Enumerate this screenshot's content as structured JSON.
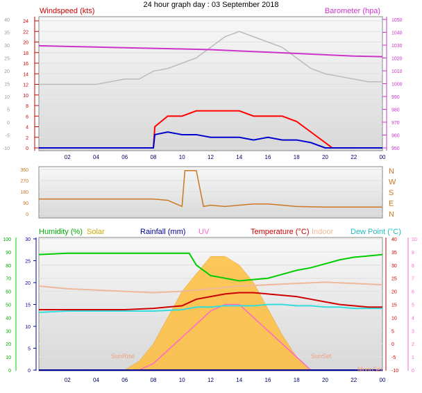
{
  "page_title": "24 hour graph day : 03 September 2018",
  "panel1": {
    "wind_label": "Windspeed (kts)",
    "baro_label": "Barometer (hpa)",
    "colors": {
      "gust": "#ff0000",
      "avg": "#0000cc",
      "baro": "#cc33cc",
      "temp_ghost": "#bbbbbb"
    }
  },
  "panel2": {
    "dir_labels": [
      "N",
      "W",
      "S",
      "E",
      "N"
    ],
    "color": "#cc7722"
  },
  "panel3": {
    "legend": {
      "humidity": "Humidity (%)",
      "solar": "Solar",
      "rainfall": "Rainfall (mm)",
      "uv": "UV",
      "temperature": "Temperature (°C)",
      "indoor": "Indoor",
      "dewpoint": "Dew Point (°C)"
    },
    "markers": {
      "sunrise": "SunRise",
      "sunset": "SunSet",
      "moon_set": "MoonSet"
    },
    "colors": {
      "humidity": "#00cc00",
      "solar": "#ffbb33",
      "rainfall": "#000099",
      "uv": "#ff66cc",
      "temperature": "#cc0000",
      "indoor": "#f0b89a",
      "dewpoint": "#33dddd"
    }
  },
  "chart_data": [
    {
      "type": "line",
      "x_ticks": [
        "02",
        "04",
        "06",
        "08",
        "10",
        "12",
        "14",
        "16",
        "18",
        "20",
        "22",
        "00"
      ],
      "axes": {
        "left_kts": [
          24,
          22,
          20,
          18,
          16,
          14,
          12,
          10,
          8,
          6,
          4,
          2,
          0
        ],
        "left_outer": [
          "40",
          "35",
          "30",
          "25",
          "20",
          "15",
          "10",
          "5",
          "0",
          "-5",
          "-10"
        ],
        "right_hpa": [
          1050,
          1040,
          1030,
          1020,
          1010,
          1000,
          990,
          980,
          970,
          960,
          950
        ]
      },
      "series": [
        {
          "name": "Windspeed (kts)",
          "x": [
            0,
            8,
            8.1,
            9,
            10,
            11,
            12,
            13,
            14,
            15,
            16,
            17,
            18,
            19,
            20,
            20.5,
            21,
            24
          ],
          "y": [
            0,
            0,
            4,
            6,
            6,
            7,
            7,
            7,
            7,
            6,
            6,
            6,
            5,
            3,
            1,
            0,
            0,
            0
          ]
        },
        {
          "name": "Windspeed (kts)",
          "x": [
            0,
            8,
            8.1,
            9,
            10,
            11,
            12,
            13,
            14,
            15,
            16,
            17,
            18,
            19,
            20,
            24
          ],
          "y": [
            0,
            0,
            2.5,
            3,
            2.5,
            2.5,
            2,
            2,
            2,
            1.5,
            2,
            1.5,
            1.5,
            1,
            0,
            0
          ]
        },
        {
          "name": "Barometer (hpa)",
          "x": [
            0,
            2,
            4,
            6,
            8,
            10,
            12,
            14,
            16,
            18,
            20,
            22,
            24
          ],
          "y": [
            1029.5,
            1029,
            1028.5,
            1028,
            1027.5,
            1027,
            1026.5,
            1025.5,
            1024.5,
            1023.5,
            1022.5,
            1021.5,
            1021
          ]
        }
      ]
    },
    {
      "type": "line",
      "x_ticks": [
        "02",
        "04",
        "06",
        "08",
        "10",
        "12",
        "14",
        "16",
        "18",
        "20",
        "22",
        "00"
      ],
      "y_ticks": [
        360,
        270,
        180,
        90,
        0
      ],
      "series": [
        {
          "x": [
            0,
            2,
            4,
            6,
            8,
            9,
            10,
            10.2,
            10.3,
            11,
            11.5,
            12,
            13,
            14,
            15,
            16,
            17,
            18,
            20,
            22,
            24
          ],
          "y": [
            120,
            120,
            120,
            120,
            120,
            110,
            60,
            350,
            350,
            350,
            60,
            70,
            60,
            70,
            80,
            80,
            70,
            60,
            55,
            55,
            55
          ]
        }
      ]
    },
    {
      "type": "area",
      "x_ticks": [
        "02",
        "04",
        "06",
        "08",
        "10",
        "12",
        "14",
        "16",
        "18",
        "20",
        "22",
        "00"
      ],
      "axes": {
        "humidity_pct": [
          100,
          90,
          80,
          70,
          60,
          50,
          40,
          30,
          20,
          10,
          0
        ],
        "temp_c": [
          40,
          35,
          30,
          25,
          20,
          15,
          10,
          5,
          0,
          -5,
          -10
        ],
        "uv": [
          10,
          9,
          8,
          7,
          6,
          5,
          4,
          3,
          2,
          1,
          0
        ],
        "rain_mm": [
          30,
          25,
          20,
          15,
          10,
          5,
          0
        ]
      },
      "series": [
        {
          "name": "Humidity (%)",
          "x": [
            0,
            2,
            4,
            6,
            8,
            10,
            10.5,
            11,
            12,
            13,
            14,
            15,
            16,
            17,
            18,
            19,
            20,
            21,
            22,
            23,
            24
          ],
          "y": [
            88,
            89,
            89,
            89,
            89,
            89,
            89,
            80,
            72,
            70,
            68,
            69,
            70,
            73,
            76,
            78,
            81,
            84,
            86,
            87,
            88
          ]
        },
        {
          "name": "Temperature (°C)",
          "x": [
            0,
            2,
            4,
            6,
            8,
            10,
            11,
            12,
            13,
            14,
            15,
            16,
            17,
            18,
            19,
            20,
            21,
            22,
            23,
            24
          ],
          "y": [
            13,
            13,
            13,
            13,
            13.5,
            14.5,
            17,
            18,
            19,
            19.5,
            19.5,
            19,
            18.5,
            18,
            17,
            16,
            15,
            14.5,
            14,
            14
          ]
        },
        {
          "name": "Dew Point (°C)",
          "x": [
            0,
            2,
            4,
            6,
            8,
            10,
            11,
            12,
            13,
            14,
            15,
            16,
            17,
            18,
            19,
            20,
            21,
            22,
            23,
            24
          ],
          "y": [
            12,
            12.5,
            12.5,
            12.5,
            12.5,
            13,
            14,
            14,
            14.5,
            14.5,
            14.5,
            15,
            15,
            14.5,
            14.5,
            14,
            14,
            13.5,
            13.5,
            13.5
          ]
        },
        {
          "name": "Indoor",
          "x": [
            0,
            2,
            4,
            6,
            8,
            10,
            12,
            14,
            16,
            18,
            20,
            22,
            24
          ],
          "y": [
            22,
            21,
            20.5,
            20,
            19.5,
            20,
            21,
            22,
            22.5,
            23,
            23.5,
            23,
            22.5
          ]
        },
        {
          "name": "Solar",
          "x": [
            6,
            7,
            8,
            9,
            10,
            11,
            12,
            13,
            14,
            15,
            16,
            17,
            18,
            19
          ],
          "y": [
            0,
            2,
            6,
            12,
            18,
            22,
            26,
            26,
            24,
            20,
            14,
            8,
            3,
            0
          ]
        },
        {
          "name": "UV",
          "x": [
            7,
            8,
            9,
            10,
            11,
            12,
            13,
            14,
            15,
            16,
            17,
            18,
            19
          ],
          "y": [
            0,
            0.5,
            1.5,
            2.5,
            3.5,
            4.5,
            5,
            5,
            4,
            3,
            2,
            1,
            0
          ]
        },
        {
          "name": "Rainfall (mm)",
          "x": [
            0,
            24
          ],
          "y": [
            0,
            0
          ]
        }
      ]
    }
  ]
}
